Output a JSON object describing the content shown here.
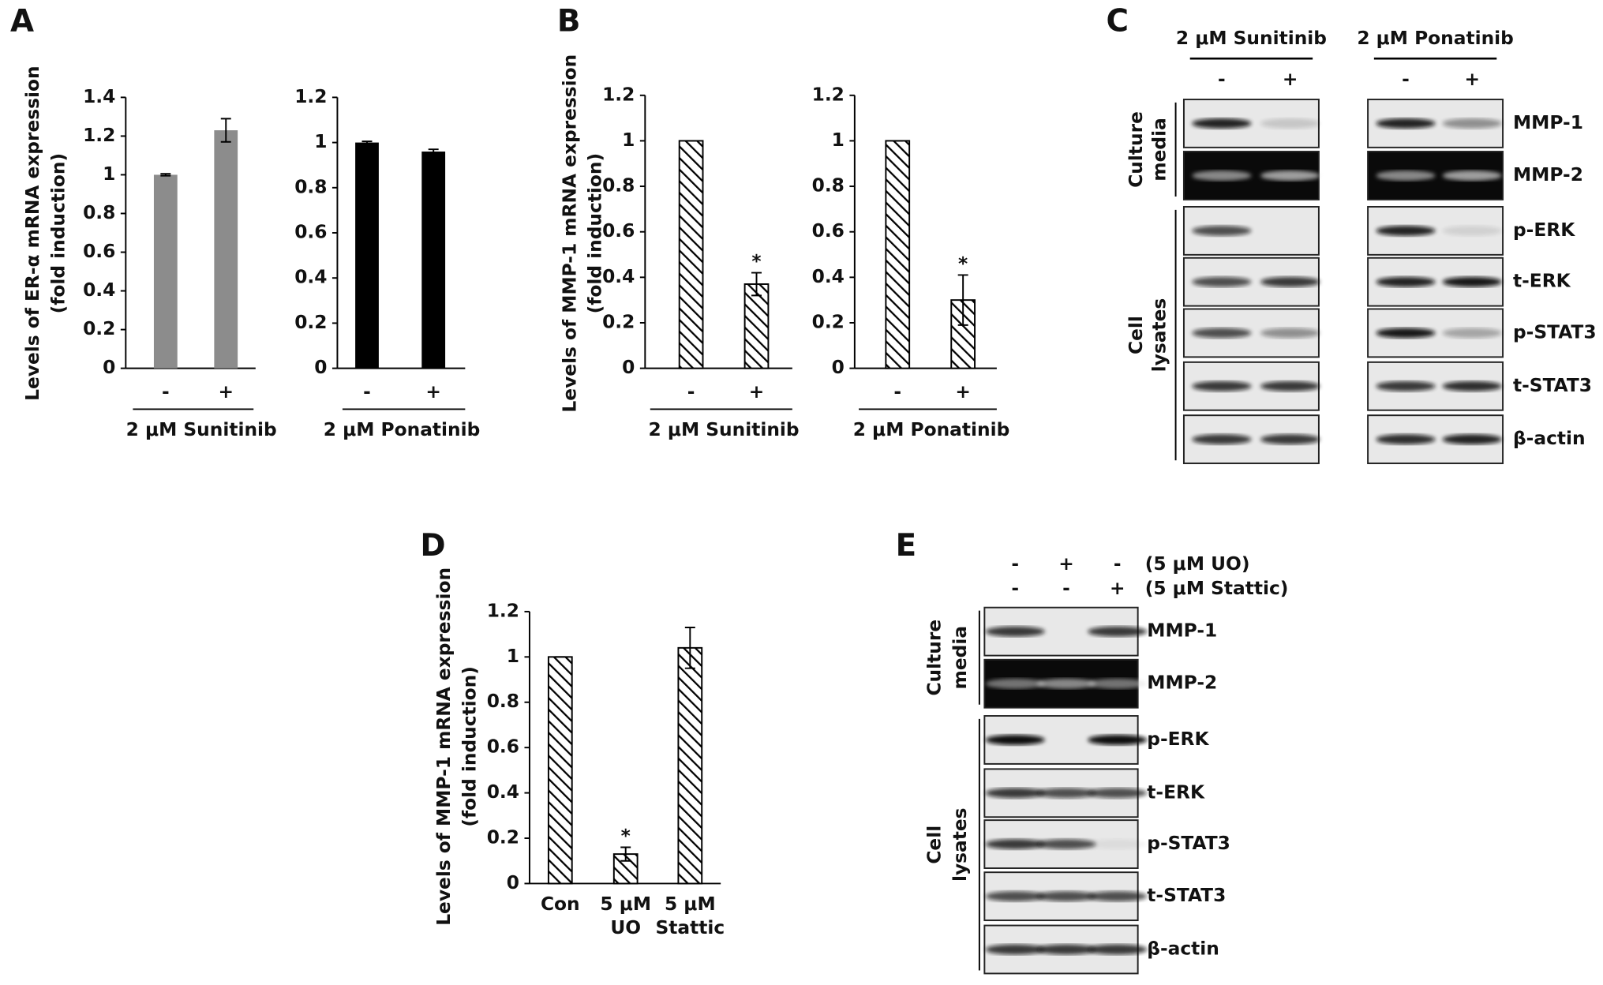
{
  "panels": [
    "A",
    "B",
    "C",
    "D",
    "E"
  ],
  "chart_data": [
    {
      "type": "bar",
      "ylabel": [
        "Levels of ER-α mRNA expression",
        "(fold induction)"
      ],
      "categories": [
        "-",
        "+"
      ],
      "values": [
        1,
        1.23
      ],
      "errors": [
        0.005,
        0.06
      ],
      "color": "#8c8c8c",
      "ylim": [
        0,
        1.4
      ],
      "yticks": [
        0,
        0.2,
        0.4,
        0.6,
        0.8,
        1,
        1.2,
        1.4
      ],
      "group_label": "2 μM Sunitinib"
    },
    {
      "type": "bar",
      "categories": [
        "-",
        "+"
      ],
      "values": [
        1,
        0.96
      ],
      "errors": [
        0.005,
        0.01
      ],
      "color": "#000000",
      "ylim": [
        0,
        1.2
      ],
      "yticks": [
        0,
        0.2,
        0.4,
        0.6,
        0.8,
        1,
        1.2
      ],
      "group_label": "2 μM Ponatinib"
    },
    {
      "type": "bar",
      "ylabel": [
        "Levels of MMP-1 mRNA expression",
        "(fold induction)"
      ],
      "categories": [
        "-",
        "+"
      ],
      "values": [
        1,
        0.37
      ],
      "errors": [
        0,
        0.05
      ],
      "pattern": "hatch",
      "ylim": [
        0,
        1.2
      ],
      "yticks": [
        0,
        0.2,
        0.4,
        0.6,
        0.8,
        1,
        1.2
      ],
      "group_label": "2 μM Sunitinib",
      "annotations": [
        {
          "index": 1,
          "text": "*"
        }
      ]
    },
    {
      "type": "bar",
      "categories": [
        "-",
        "+"
      ],
      "values": [
        1,
        0.3
      ],
      "errors": [
        0,
        0.11
      ],
      "pattern": "hatch",
      "ylim": [
        0,
        1.2
      ],
      "yticks": [
        0,
        0.2,
        0.4,
        0.6,
        0.8,
        1,
        1.2
      ],
      "group_label": "2 μM Ponatinib",
      "annotations": [
        {
          "index": 1,
          "text": "*"
        }
      ]
    },
    {
      "type": "bar",
      "ylabel": [
        "Levels of MMP-1 mRNA expression",
        "(fold induction)"
      ],
      "categories": [
        [
          "Con"
        ],
        [
          "5 μM",
          "UO"
        ],
        [
          "5 μM",
          "Stattic"
        ]
      ],
      "values": [
        1,
        0.13,
        1.04
      ],
      "errors": [
        0,
        0.03,
        0.09
      ],
      "pattern": "hatch",
      "ylim": [
        0,
        1.2
      ],
      "yticks": [
        0,
        0.2,
        0.4,
        0.6,
        0.8,
        1,
        1.2
      ],
      "annotations": [
        {
          "index": 1,
          "text": "*"
        }
      ]
    }
  ],
  "blot_c": {
    "groups": [
      {
        "title": "2 μM Sunitinib",
        "lanes": [
          "-",
          "+"
        ]
      },
      {
        "title": "2 μM Ponatinib",
        "lanes": [
          "-",
          "+"
        ]
      }
    ],
    "sections": [
      {
        "label": [
          "Culture",
          "media"
        ],
        "rows": [
          "MMP-1",
          "MMP-2"
        ]
      },
      {
        "label": [
          "Cell",
          "lysates"
        ],
        "rows": [
          "p-ERK",
          "t-ERK",
          "p-STAT3",
          "t-STAT3",
          "β-actin"
        ]
      }
    ]
  },
  "blot_e": {
    "treatments": [
      {
        "label": "(5 μM UO)",
        "lanes": [
          "-",
          "+",
          "-"
        ]
      },
      {
        "label": "(5 μM Stattic)",
        "lanes": [
          "-",
          "-",
          "+"
        ]
      }
    ],
    "sections": [
      {
        "label": [
          "Culture",
          "media"
        ],
        "rows": [
          "MMP-1",
          "MMP-2"
        ]
      },
      {
        "label": [
          "Cell",
          "lysates"
        ],
        "rows": [
          "p-ERK",
          "t-ERK",
          "p-STAT3",
          "t-STAT3",
          "β-actin"
        ]
      }
    ]
  }
}
